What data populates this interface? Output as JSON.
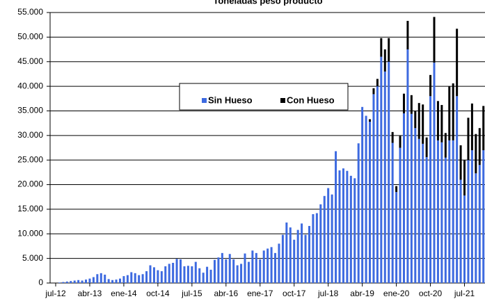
{
  "chart_data": {
    "type": "stacked_bar",
    "title": "Toneladas peso producto",
    "categories": [
      "jul-12",
      null,
      null,
      null,
      null,
      null,
      null,
      null,
      null,
      "abr-13",
      null,
      null,
      null,
      null,
      null,
      null,
      null,
      null,
      "ene-14",
      null,
      null,
      null,
      null,
      null,
      null,
      null,
      null,
      "oct-14",
      null,
      null,
      null,
      null,
      null,
      null,
      null,
      null,
      "jul-15",
      null,
      null,
      null,
      null,
      null,
      null,
      null,
      null,
      "abr-16",
      null,
      null,
      null,
      null,
      null,
      null,
      null,
      null,
      "ene-17",
      null,
      null,
      null,
      null,
      null,
      null,
      null,
      null,
      "oct-17",
      null,
      null,
      null,
      null,
      null,
      null,
      null,
      null,
      "jul-18",
      null,
      null,
      null,
      null,
      null,
      null,
      null,
      null,
      "abr-19",
      null,
      null,
      null,
      null,
      null,
      null,
      null,
      null,
      "ene-20",
      null,
      null,
      null,
      null,
      null,
      null,
      null,
      null,
      "oct-20",
      null,
      null,
      null,
      null,
      null,
      null,
      null,
      null,
      "jul-21",
      null,
      null,
      null,
      null,
      null
    ],
    "series": [
      {
        "name": "Sin Hueso",
        "color": "#3d6ae0",
        "values": [
          0,
          100,
          200,
          300,
          400,
          500,
          600,
          500,
          700,
          900,
          1200,
          1800,
          2000,
          1700,
          800,
          600,
          700,
          900,
          1400,
          1600,
          2200,
          2000,
          1600,
          1800,
          2400,
          3600,
          3200,
          2600,
          2400,
          3400,
          3900,
          4100,
          4900,
          4800,
          3400,
          3500,
          3400,
          4300,
          3000,
          2100,
          3300,
          2700,
          4700,
          5200,
          6100,
          4800,
          5900,
          4800,
          3600,
          3900,
          6000,
          4300,
          6600,
          6100,
          4800,
          6600,
          7000,
          7300,
          6100,
          8000,
          9800,
          12300,
          11300,
          8800,
          10800,
          12100,
          9800,
          11600,
          14000,
          14200,
          16000,
          17700,
          19300,
          18000,
          26800,
          22900,
          23300,
          22800,
          21800,
          21300,
          28400,
          35800,
          34000,
          32800,
          38400,
          40000,
          46000,
          43000,
          45000,
          28500,
          18500,
          27500,
          34500,
          47500,
          34400,
          31500,
          29300,
          28300,
          25600,
          38000,
          44800,
          29000,
          28600,
          25500,
          29000,
          29000,
          38000,
          21000,
          17800,
          25000,
          27000,
          22300,
          24000,
          27000
        ]
      },
      {
        "name": "Con Hueso",
        "color": "#000000",
        "values": [
          0,
          0,
          0,
          0,
          0,
          0,
          0,
          0,
          0,
          0,
          0,
          0,
          0,
          0,
          0,
          0,
          0,
          0,
          0,
          0,
          0,
          0,
          0,
          0,
          0,
          0,
          0,
          0,
          0,
          0,
          0,
          0,
          0,
          0,
          0,
          0,
          0,
          0,
          0,
          0,
          0,
          0,
          0,
          0,
          0,
          0,
          0,
          0,
          0,
          0,
          0,
          0,
          0,
          0,
          0,
          0,
          0,
          0,
          0,
          0,
          0,
          0,
          0,
          0,
          0,
          0,
          0,
          0,
          0,
          0,
          0,
          0,
          0,
          0,
          0,
          0,
          0,
          0,
          0,
          0,
          0,
          0,
          0,
          500,
          1200,
          1500,
          3800,
          4500,
          4800,
          2200,
          1200,
          2400,
          4000,
          5800,
          3800,
          3500,
          7300,
          8000,
          4000,
          4300,
          9300,
          8000,
          7600,
          5000,
          11000,
          11600,
          13700,
          7000,
          7200,
          8600,
          9500,
          8000,
          7500,
          9000
        ]
      }
    ],
    "ylim": [
      0,
      55000
    ],
    "yticks": [
      0,
      {
        "value": 5000,
        "label": "5.000"
      },
      {
        "value": 10000,
        "label": "10.000"
      },
      {
        "value": 15000,
        "label": "15.000"
      },
      {
        "value": 20000,
        "label": "20.000"
      },
      {
        "value": 25000,
        "label": "25.000"
      },
      {
        "value": 30000,
        "label": "30.000"
      },
      {
        "value": 35000,
        "label": "35.000"
      },
      {
        "value": 40000,
        "label": "40.000"
      },
      {
        "value": 45000,
        "label": "45.000"
      },
      {
        "value": 50000,
        "label": "50.000"
      },
      {
        "value": 55000,
        "label": "55.000"
      }
    ],
    "grid": true
  }
}
